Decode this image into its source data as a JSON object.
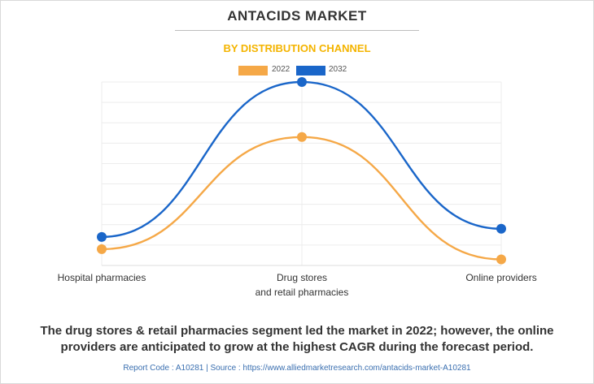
{
  "header": {
    "title": "ANTACIDS MARKET",
    "subtitle": "BY DISTRIBUTION CHANNEL"
  },
  "chart_data": {
    "type": "line",
    "categories": [
      "Hospital pharmacies",
      "Drug stores and retail pharmacies",
      "Online providers"
    ],
    "category_lines": [
      [
        "Hospital pharmacies"
      ],
      [
        "Drug stores",
        "and retail pharmacies"
      ],
      [
        "Online providers"
      ]
    ],
    "series": [
      {
        "name": "2022",
        "color": "#f5a847",
        "values": [
          0.8,
          6.3,
          0.3
        ]
      },
      {
        "name": "2032",
        "color": "#1a66c9",
        "values": [
          1.4,
          9.0,
          1.8
        ]
      }
    ],
    "ylim": [
      0,
      9
    ],
    "grid": true,
    "legend_position": "top-center",
    "smooth": true
  },
  "footer": {
    "summary_line1": "The drug stores & retail pharmacies segment led the market in 2022; however, the online",
    "summary_line2": "providers are anticipated to grow at the highest CAGR during the forecast period.",
    "source": "Report Code : A10281  |  Source : https://www.alliedmarketresearch.com/antacids-market-A10281"
  }
}
